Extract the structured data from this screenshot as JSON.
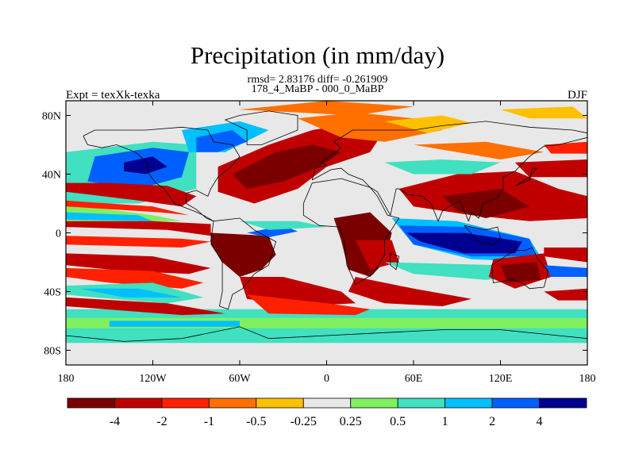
{
  "title": "Precipitation (in mm/day)",
  "stats_line": "rmsd= 2.83176 diff= -0.261909",
  "period_line": "178_4_MaBP - 000_0_MaBP",
  "experiment_label": "Expt = texXk-texka",
  "season_label": "DJF",
  "lat_labels": [
    "80N",
    "40N",
    "0",
    "40S",
    "80S"
  ],
  "lon_labels": [
    "180",
    "120W",
    "60W",
    "0",
    "60E",
    "120E",
    "180"
  ],
  "colorbar": {
    "colors": [
      "#7a0000",
      "#c00000",
      "#ff2000",
      "#ff7000",
      "#ffc000",
      "#e8e8e8",
      "#80f060",
      "#40e0c0",
      "#00c0ff",
      "#0060ff",
      "#000090"
    ],
    "labels": [
      "-4",
      "-2",
      "-1",
      "-0.5",
      "-0.25",
      "0.25",
      "0.5",
      "1",
      "2",
      "4"
    ]
  }
}
